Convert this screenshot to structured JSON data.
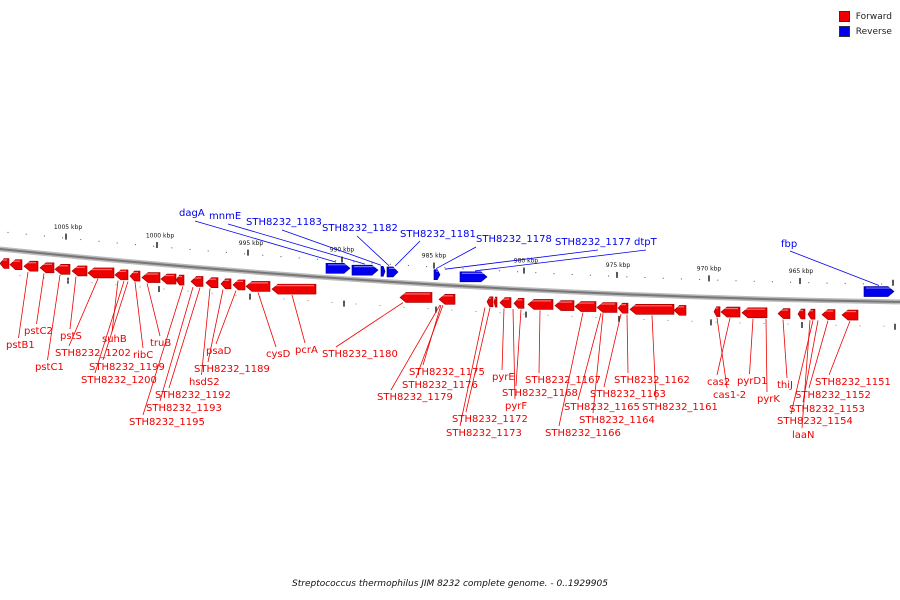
{
  "colors": {
    "forward": "#ee0000",
    "reverse": "#0000ee",
    "backbone": "#888888"
  },
  "legend": [
    {
      "label": "Forward",
      "color": "#ee0000"
    },
    {
      "label": "Reverse",
      "color": "#0000ee"
    }
  ],
  "scale_labels": [
    "1005 kbp",
    "1000 kbp",
    "995 kbp",
    "990 kbp",
    "985 kbp",
    "980 kbp",
    "975 kbp",
    "970 kbp",
    "965 kbp"
  ],
  "caption": "Streptococcus thermophilus JIM 8232 complete genome. - 0..1929905",
  "reverse_labels": [
    "dagA",
    "mnmE",
    "STH8232_1183",
    "STH8232_1182",
    "STH8232_1181",
    "STH8232_1178",
    "STH8232_1177",
    "dtpT",
    "fbp"
  ],
  "forward_labels": [
    "pstB1",
    "pstC2",
    "pstC1",
    "pstS",
    "STH8232_1202",
    "suhB",
    "STH8232_1199",
    "ribC",
    "STH8232_1200",
    "truB",
    "STH8232_1195",
    "STH8232_1193",
    "STH8232_1192",
    "hsdS2",
    "STH8232_1189",
    "psaD",
    "cysD",
    "pcrA",
    "STH8232_1180",
    "STH8232_1179",
    "STH8232_1176",
    "STH8232_1175",
    "STH8232_1173",
    "STH8232_1172",
    "pyrF",
    "pyrE",
    "STH8232_1168",
    "STH8232_1167",
    "STH8232_1166",
    "STH8232_1165",
    "STH8232_1164",
    "STH8232_1163",
    "STH8232_1162",
    "STH8232_1161",
    "cas1-2",
    "cas2",
    "pyrK",
    "pyrD1",
    "thiJ",
    "laaN",
    "STH8232_1154",
    "STH8232_1153",
    "STH8232_1152",
    "STH8232_1151"
  ]
}
